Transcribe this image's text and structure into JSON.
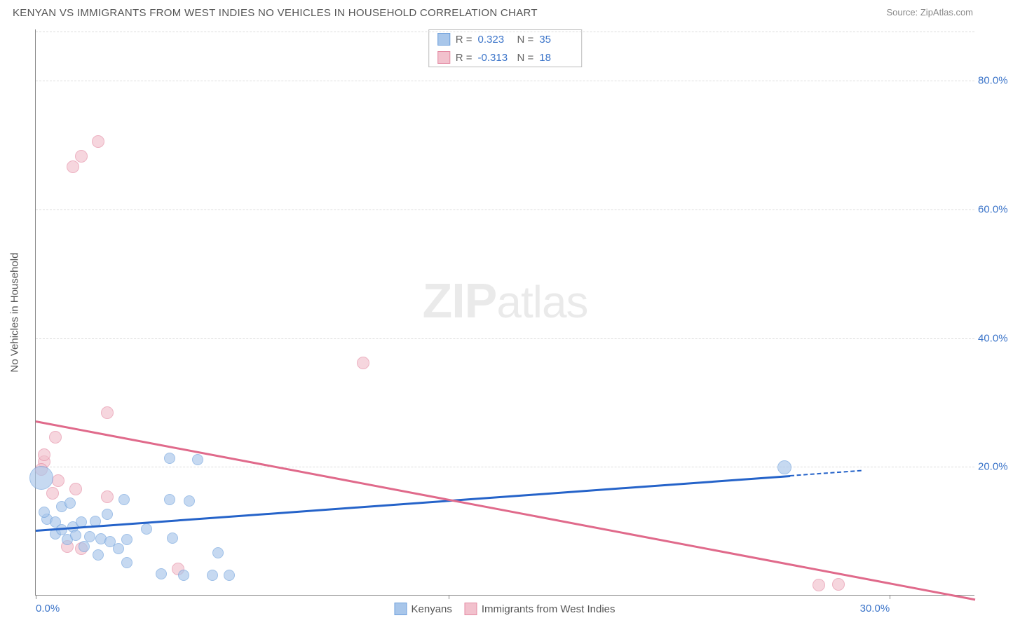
{
  "header": {
    "title": "KENYAN VS IMMIGRANTS FROM WEST INDIES NO VEHICLES IN HOUSEHOLD CORRELATION CHART",
    "source": "Source: ZipAtlas.com"
  },
  "watermark": {
    "zip": "ZIP",
    "atlas": "atlas"
  },
  "chart": {
    "type": "scatter",
    "ylabel": "No Vehicles in Household",
    "xlim": [
      0,
      33
    ],
    "ylim": [
      0,
      88
    ],
    "xtick_positions": [
      0,
      14.5,
      30
    ],
    "xtick_labels": [
      "0.0%",
      "",
      "30.0%"
    ],
    "ytick_positions": [
      20,
      40,
      60,
      80
    ],
    "ytick_labels": [
      "20.0%",
      "40.0%",
      "60.0%",
      "80.0%"
    ],
    "grid_dash_color": "#dddddd",
    "axis_color": "#888888",
    "tick_label_color": "#3b74c9",
    "background_color": "#ffffff",
    "series": [
      {
        "name": "Kenyans",
        "fill": "#a8c6ea",
        "stroke": "#6d9fdc",
        "opacity": 0.65,
        "trend_color": "#2563c9",
        "trend": {
          "x1": 0,
          "y1": 10.2,
          "x2": 29,
          "y2": 19.5,
          "dash_after_x": 26.5
        },
        "legend": {
          "r_label": "R =",
          "r_value": "0.323",
          "n_label": "N =",
          "n_value": "35"
        },
        "points": [
          {
            "x": 0.2,
            "y": 18.2,
            "r": 17
          },
          {
            "x": 0.4,
            "y": 11.8,
            "r": 8
          },
          {
            "x": 0.3,
            "y": 12.8,
            "r": 8
          },
          {
            "x": 0.7,
            "y": 11.3,
            "r": 8
          },
          {
            "x": 0.9,
            "y": 13.7,
            "r": 8
          },
          {
            "x": 1.2,
            "y": 14.3,
            "r": 8
          },
          {
            "x": 0.7,
            "y": 9.5,
            "r": 8
          },
          {
            "x": 0.9,
            "y": 10.1,
            "r": 8
          },
          {
            "x": 1.3,
            "y": 10.6,
            "r": 8
          },
          {
            "x": 1.6,
            "y": 11.3,
            "r": 8
          },
          {
            "x": 1.1,
            "y": 8.6,
            "r": 8
          },
          {
            "x": 1.4,
            "y": 9.3,
            "r": 8
          },
          {
            "x": 1.9,
            "y": 9.0,
            "r": 8
          },
          {
            "x": 2.3,
            "y": 8.7,
            "r": 8
          },
          {
            "x": 1.7,
            "y": 7.5,
            "r": 8
          },
          {
            "x": 2.1,
            "y": 11.4,
            "r": 8
          },
          {
            "x": 2.6,
            "y": 8.3,
            "r": 8
          },
          {
            "x": 2.5,
            "y": 12.5,
            "r": 8
          },
          {
            "x": 2.9,
            "y": 7.2,
            "r": 8
          },
          {
            "x": 3.2,
            "y": 8.6,
            "r": 8
          },
          {
            "x": 3.1,
            "y": 14.8,
            "r": 8
          },
          {
            "x": 3.9,
            "y": 10.2,
            "r": 8
          },
          {
            "x": 3.2,
            "y": 5.0,
            "r": 8
          },
          {
            "x": 4.7,
            "y": 21.2,
            "r": 8
          },
          {
            "x": 4.7,
            "y": 14.8,
            "r": 8
          },
          {
            "x": 4.8,
            "y": 8.8,
            "r": 8
          },
          {
            "x": 5.4,
            "y": 14.6,
            "r": 8
          },
          {
            "x": 5.7,
            "y": 21.0,
            "r": 8
          },
          {
            "x": 5.2,
            "y": 3.0,
            "r": 8
          },
          {
            "x": 4.4,
            "y": 3.3,
            "r": 8
          },
          {
            "x": 6.2,
            "y": 3.0,
            "r": 8
          },
          {
            "x": 6.4,
            "y": 6.5,
            "r": 8
          },
          {
            "x": 6.8,
            "y": 3.0,
            "r": 8
          },
          {
            "x": 2.2,
            "y": 6.2,
            "r": 8
          },
          {
            "x": 26.3,
            "y": 19.8,
            "r": 10
          }
        ]
      },
      {
        "name": "Immigrants from West Indies",
        "fill": "#f2c1cd",
        "stroke": "#e48aa3",
        "opacity": 0.65,
        "trend_color": "#e06a8b",
        "trend": {
          "x1": 0,
          "y1": 27.2,
          "x2": 33,
          "y2": -0.5
        },
        "legend": {
          "r_label": "R =",
          "r_value": "-0.313",
          "n_label": "N =",
          "n_value": "18"
        },
        "points": [
          {
            "x": 1.6,
            "y": 68.2,
            "r": 9
          },
          {
            "x": 2.2,
            "y": 70.5,
            "r": 9
          },
          {
            "x": 1.3,
            "y": 66.5,
            "r": 9
          },
          {
            "x": 2.5,
            "y": 28.3,
            "r": 9
          },
          {
            "x": 0.7,
            "y": 24.5,
            "r": 9
          },
          {
            "x": 0.3,
            "y": 20.7,
            "r": 9
          },
          {
            "x": 0.3,
            "y": 21.8,
            "r": 9
          },
          {
            "x": 0.2,
            "y": 19.5,
            "r": 9
          },
          {
            "x": 0.8,
            "y": 17.8,
            "r": 9
          },
          {
            "x": 1.4,
            "y": 16.5,
            "r": 9
          },
          {
            "x": 0.6,
            "y": 15.8,
            "r": 9
          },
          {
            "x": 2.5,
            "y": 15.2,
            "r": 9
          },
          {
            "x": 1.1,
            "y": 7.5,
            "r": 9
          },
          {
            "x": 1.6,
            "y": 7.2,
            "r": 9
          },
          {
            "x": 5.0,
            "y": 4.0,
            "r": 9
          },
          {
            "x": 11.5,
            "y": 36.0,
            "r": 9
          },
          {
            "x": 27.5,
            "y": 1.5,
            "r": 9
          },
          {
            "x": 28.2,
            "y": 1.6,
            "r": 9
          }
        ]
      }
    ]
  }
}
